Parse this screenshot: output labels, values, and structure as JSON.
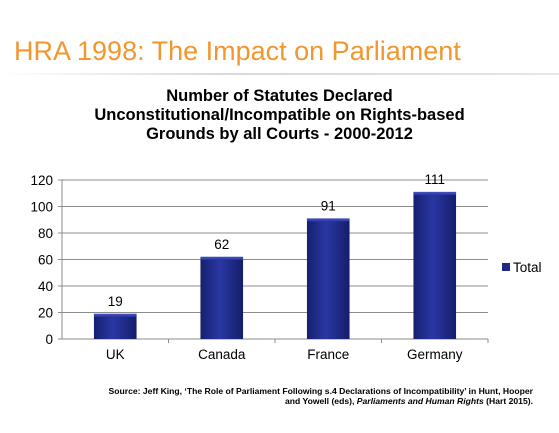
{
  "slide": {
    "title": "HRA 1998: The Impact on Parliament"
  },
  "chart_data": {
    "type": "bar",
    "title_lines": [
      "Number of Statutes Declared",
      "Unconstitutional/Incompatible on Rights-based",
      "Grounds by all Courts - 2000-2012"
    ],
    "categories": [
      "UK",
      "Canada",
      "France",
      "Germany"
    ],
    "series": [
      {
        "name": "Total",
        "values": [
          19,
          62,
          91,
          111
        ]
      }
    ],
    "ylim": [
      0,
      120
    ],
    "yticks": [
      0,
      20,
      40,
      60,
      80,
      100,
      120
    ],
    "grid": true,
    "legend_position": "right",
    "bar_color": "#1F2A8A",
    "xlabel": "",
    "ylabel": ""
  },
  "source": {
    "line1": "Source: Jeff King, ‘The Role of Parliament Following s.4 Declarations of Incompatibility’ in Hunt, Hooper",
    "line2_prefix": "and Yowell (eds), ",
    "line2_italic": "Parliaments and Human Rights",
    "line2_suffix": " (Hart 2015)."
  }
}
